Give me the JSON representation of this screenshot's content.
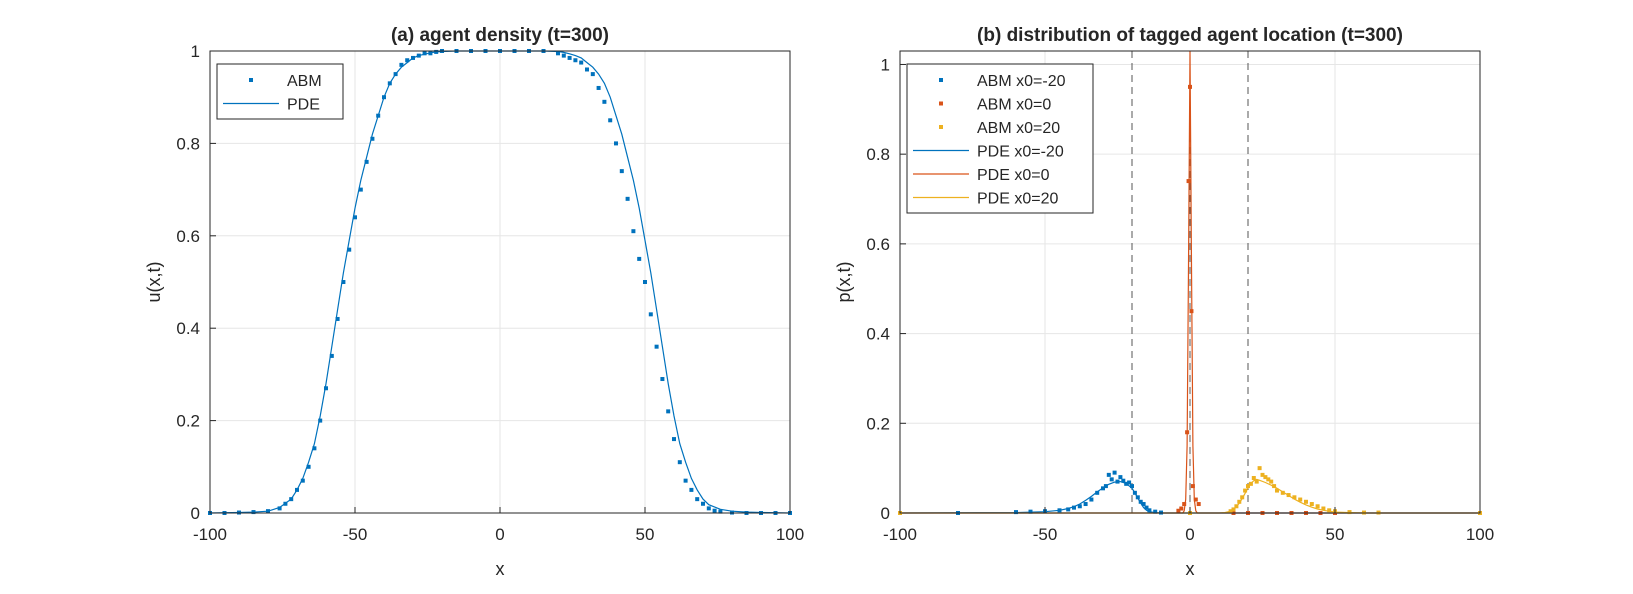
{
  "chart_data": [
    {
      "type": "line",
      "title": "(a) agent density (t=300)",
      "xlabel": "x",
      "ylabel": "u(x,t)",
      "xlim": [
        -100,
        100
      ],
      "ylim": [
        0,
        1
      ],
      "xticks": [
        "-100",
        "-50",
        "0",
        "50",
        "100"
      ],
      "yticks": [
        "0",
        "0.2",
        "0.4",
        "0.6",
        "0.8",
        "1"
      ],
      "grid": true,
      "legend_position": "top-left",
      "series": [
        {
          "name": "ABM",
          "style": "markers",
          "color": "#0072BD",
          "x": [
            -100,
            -95,
            -90,
            -85,
            -80,
            -76,
            -74,
            -72,
            -70,
            -68,
            -66,
            -64,
            -62,
            -60,
            -58,
            -56,
            -54,
            -52,
            -50,
            -48,
            -46,
            -44,
            -42,
            -40,
            -38,
            -36,
            -34,
            -32,
            -30,
            -28,
            -26,
            -24,
            -22,
            -20,
            -15,
            -10,
            -5,
            0,
            5,
            10,
            15,
            20,
            22,
            24,
            26,
            28,
            30,
            32,
            34,
            36,
            38,
            40,
            42,
            44,
            46,
            48,
            50,
            52,
            54,
            56,
            58,
            60,
            62,
            64,
            66,
            68,
            70,
            72,
            74,
            76,
            80,
            85,
            90,
            95,
            100
          ],
          "y": [
            0,
            0,
            0.001,
            0.002,
            0.004,
            0.01,
            0.02,
            0.03,
            0.05,
            0.07,
            0.1,
            0.14,
            0.2,
            0.27,
            0.34,
            0.42,
            0.5,
            0.57,
            0.64,
            0.7,
            0.76,
            0.81,
            0.86,
            0.9,
            0.93,
            0.95,
            0.97,
            0.98,
            0.985,
            0.99,
            0.995,
            0.995,
            0.998,
            1.0,
            1.0,
            1.0,
            1.0,
            1.0,
            1.0,
            1.0,
            1.0,
            0.995,
            0.99,
            0.985,
            0.98,
            0.975,
            0.96,
            0.95,
            0.92,
            0.89,
            0.85,
            0.8,
            0.74,
            0.68,
            0.61,
            0.55,
            0.5,
            0.43,
            0.36,
            0.29,
            0.22,
            0.16,
            0.11,
            0.07,
            0.05,
            0.03,
            0.02,
            0.01,
            0.005,
            0.003,
            0.001,
            0,
            0,
            0,
            0
          ]
        },
        {
          "name": "PDE",
          "style": "line",
          "color": "#0072BD",
          "x": [
            -100,
            -90,
            -85,
            -80,
            -76,
            -72,
            -70,
            -68,
            -66,
            -64,
            -62,
            -60,
            -58,
            -56,
            -54,
            -52,
            -50,
            -48,
            -46,
            -44,
            -42,
            -40,
            -38,
            -36,
            -34,
            -32,
            -30,
            -28,
            -26,
            -24,
            -22,
            -20,
            -15,
            -10,
            -5,
            0,
            5,
            10,
            15,
            20,
            22,
            24,
            26,
            28,
            30,
            32,
            34,
            36,
            38,
            40,
            42,
            44,
            46,
            48,
            50,
            52,
            54,
            56,
            58,
            60,
            62,
            64,
            66,
            68,
            70,
            72,
            76,
            80,
            85,
            90,
            100
          ],
          "y": [
            0,
            0.001,
            0.002,
            0.004,
            0.012,
            0.03,
            0.05,
            0.075,
            0.11,
            0.15,
            0.21,
            0.28,
            0.36,
            0.44,
            0.52,
            0.59,
            0.66,
            0.72,
            0.77,
            0.82,
            0.86,
            0.9,
            0.93,
            0.95,
            0.965,
            0.975,
            0.985,
            0.99,
            0.993,
            0.996,
            0.998,
            0.999,
            1.0,
            1.0,
            1.0,
            1.0,
            1.0,
            1.0,
            1.0,
            0.999,
            0.997,
            0.994,
            0.99,
            0.985,
            0.975,
            0.965,
            0.95,
            0.93,
            0.9,
            0.86,
            0.82,
            0.77,
            0.72,
            0.66,
            0.59,
            0.52,
            0.44,
            0.36,
            0.28,
            0.21,
            0.15,
            0.11,
            0.075,
            0.05,
            0.03,
            0.018,
            0.008,
            0.004,
            0.002,
            0.001,
            0
          ]
        }
      ]
    },
    {
      "type": "line",
      "title": "(b) distribution of tagged agent location (t=300)",
      "xlabel": "x",
      "ylabel": "p(x,t)",
      "xlim": [
        -100,
        100
      ],
      "ylim": [
        0,
        1.03
      ],
      "xticks": [
        "-100",
        "-50",
        "0",
        "50",
        "100"
      ],
      "yticks": [
        "0",
        "0.2",
        "0.4",
        "0.6",
        "0.8",
        "1"
      ],
      "grid": true,
      "legend_position": "top-left",
      "reference_lines_x": [
        -20,
        0,
        20
      ],
      "series": [
        {
          "name": "ABM x0=-20",
          "style": "markers",
          "color": "#0072BD",
          "x": [
            -100,
            -80,
            -60,
            -55,
            -50,
            -45,
            -42,
            -40,
            -38,
            -36,
            -34,
            -32,
            -30,
            -29,
            -28,
            -27,
            -26,
            -25,
            -24,
            -23,
            -22,
            -21,
            -20,
            -19,
            -18,
            -17,
            -16,
            -15,
            -14,
            -12,
            -10,
            0,
            50,
            100
          ],
          "y": [
            0,
            0,
            0.002,
            0.003,
            0.004,
            0.006,
            0.008,
            0.012,
            0.015,
            0.02,
            0.03,
            0.045,
            0.055,
            0.06,
            0.085,
            0.075,
            0.09,
            0.07,
            0.08,
            0.072,
            0.065,
            0.068,
            0.06,
            0.045,
            0.035,
            0.025,
            0.02,
            0.012,
            0.006,
            0.003,
            0.001,
            0,
            0,
            0
          ]
        },
        {
          "name": "ABM x0=0",
          "style": "markers",
          "color": "#D95319",
          "x": [
            -100,
            -4,
            -3,
            -2,
            -1,
            -0.5,
            0,
            0.5,
            1,
            2,
            3,
            15,
            20,
            25,
            30,
            35,
            40,
            45,
            50,
            100
          ],
          "y": [
            0,
            0.005,
            0.01,
            0.02,
            0.18,
            0.74,
            0.95,
            0.45,
            0.06,
            0.03,
            0.02,
            0,
            0,
            0,
            0,
            0,
            0,
            0,
            0,
            0
          ]
        },
        {
          "name": "ABM x0=20",
          "style": "markers",
          "color": "#EDB120",
          "x": [
            -100,
            0,
            14,
            15,
            16,
            17,
            18,
            19,
            20,
            21,
            22,
            23,
            24,
            25,
            26,
            27,
            28,
            29,
            30,
            32,
            34,
            36,
            38,
            40,
            42,
            44,
            46,
            48,
            50,
            55,
            60,
            65,
            100
          ],
          "y": [
            0,
            0,
            0.004,
            0.008,
            0.015,
            0.025,
            0.035,
            0.05,
            0.06,
            0.065,
            0.078,
            0.07,
            0.1,
            0.085,
            0.08,
            0.075,
            0.07,
            0.06,
            0.05,
            0.045,
            0.04,
            0.035,
            0.03,
            0.025,
            0.02,
            0.015,
            0.01,
            0.006,
            0.004,
            0.002,
            0.001,
            0.001,
            0
          ]
        },
        {
          "name": "PDE x0=-20",
          "style": "line",
          "color": "#0072BD",
          "x": [
            -100,
            -60,
            -50,
            -45,
            -42,
            -40,
            -38,
            -36,
            -34,
            -32,
            -30,
            -28,
            -26,
            -24,
            -22,
            -20,
            -19,
            -18,
            -17,
            -16,
            -15,
            -14,
            -12,
            -10,
            100
          ],
          "y": [
            0,
            0.001,
            0.003,
            0.006,
            0.01,
            0.014,
            0.02,
            0.028,
            0.037,
            0.047,
            0.056,
            0.064,
            0.069,
            0.07,
            0.066,
            0.055,
            0.045,
            0.033,
            0.022,
            0.012,
            0.006,
            0.003,
            0.001,
            0,
            0
          ]
        },
        {
          "name": "PDE x0=0",
          "style": "line",
          "color": "#D95319",
          "x": [
            -100,
            -2.5,
            -2,
            -1.5,
            -1,
            -0.5,
            0,
            0.5,
            1,
            1.5,
            2,
            2.5,
            100
          ],
          "y": [
            0,
            0,
            0.005,
            0.03,
            0.15,
            0.55,
            1.03,
            0.55,
            0.15,
            0.03,
            0.005,
            0,
            0
          ]
        },
        {
          "name": "PDE x0=20",
          "style": "line",
          "color": "#EDB120",
          "x": [
            -100,
            10,
            12,
            14,
            15,
            16,
            17,
            18,
            19,
            20,
            21,
            22,
            23,
            24,
            26,
            28,
            30,
            32,
            34,
            36,
            38,
            40,
            42,
            44,
            46,
            48,
            50,
            55,
            60,
            100
          ],
          "y": [
            0,
            0,
            0.001,
            0.004,
            0.008,
            0.014,
            0.022,
            0.032,
            0.044,
            0.056,
            0.066,
            0.072,
            0.075,
            0.073,
            0.068,
            0.062,
            0.055,
            0.047,
            0.039,
            0.031,
            0.024,
            0.018,
            0.013,
            0.009,
            0.006,
            0.004,
            0.002,
            0.001,
            0,
            0
          ]
        }
      ]
    }
  ]
}
